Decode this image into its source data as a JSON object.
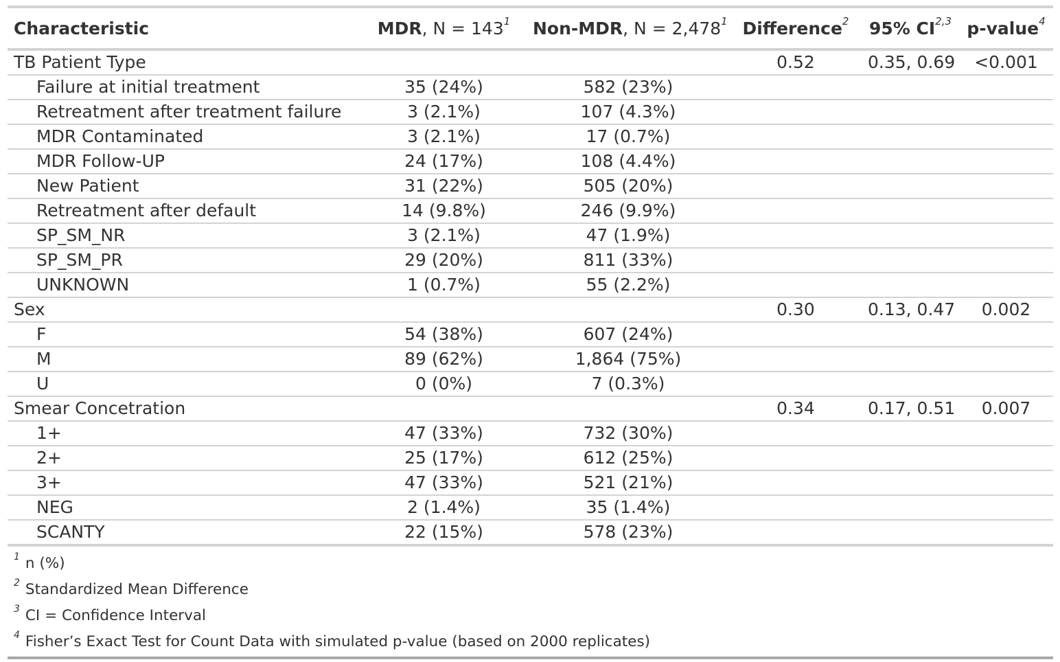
{
  "headers": {
    "characteristic": "Characteristic",
    "mdr_bold": "MDR",
    "mdr_rest": ", N = 143",
    "mdr_sup": "1",
    "nonmdr_bold": "Non-MDR",
    "nonmdr_rest": ", N = 2,478",
    "nonmdr_sup": "1",
    "difference": "Difference",
    "difference_sup": "2",
    "ci": "95% CI",
    "ci_sup": "2,3",
    "pvalue": "p-value",
    "pvalue_sup": "4"
  },
  "rows": [
    {
      "label": "TB Patient Type",
      "mdr": "",
      "nonmdr": "",
      "diff": "0.52",
      "ci": "0.35, 0.69",
      "p": "<0.001"
    },
    {
      "label": "Failure at initial treatment",
      "mdr": "35 (24%)",
      "nonmdr": "582 (23%)",
      "diff": "",
      "ci": "",
      "p": ""
    },
    {
      "label": "Retreatment after treatment failure",
      "mdr": "3 (2.1%)",
      "nonmdr": "107 (4.3%)",
      "diff": "",
      "ci": "",
      "p": ""
    },
    {
      "label": "MDR Contaminated",
      "mdr": "3 (2.1%)",
      "nonmdr": "17 (0.7%)",
      "diff": "",
      "ci": "",
      "p": ""
    },
    {
      "label": "MDR Follow-UP",
      "mdr": "24 (17%)",
      "nonmdr": "108 (4.4%)",
      "diff": "",
      "ci": "",
      "p": ""
    },
    {
      "label": "New Patient",
      "mdr": "31 (22%)",
      "nonmdr": "505 (20%)",
      "diff": "",
      "ci": "",
      "p": ""
    },
    {
      "label": "Retreatment after default",
      "mdr": "14 (9.8%)",
      "nonmdr": "246 (9.9%)",
      "diff": "",
      "ci": "",
      "p": ""
    },
    {
      "label": "SP_SM_NR",
      "mdr": "3 (2.1%)",
      "nonmdr": "47 (1.9%)",
      "diff": "",
      "ci": "",
      "p": ""
    },
    {
      "label": "SP_SM_PR",
      "mdr": "29 (20%)",
      "nonmdr": "811 (33%)",
      "diff": "",
      "ci": "",
      "p": ""
    },
    {
      "label": "UNKNOWN",
      "mdr": "1 (0.7%)",
      "nonmdr": "55 (2.2%)",
      "diff": "",
      "ci": "",
      "p": ""
    },
    {
      "label": "Sex",
      "mdr": "",
      "nonmdr": "",
      "diff": "0.30",
      "ci": "0.13, 0.47",
      "p": "0.002"
    },
    {
      "label": "F",
      "mdr": "54 (38%)",
      "nonmdr": "607 (24%)",
      "diff": "",
      "ci": "",
      "p": ""
    },
    {
      "label": "M",
      "mdr": "89 (62%)",
      "nonmdr": "1,864 (75%)",
      "diff": "",
      "ci": "",
      "p": ""
    },
    {
      "label": "U",
      "mdr": "0 (0%)",
      "nonmdr": "7 (0.3%)",
      "diff": "",
      "ci": "",
      "p": ""
    },
    {
      "label": "Smear Concetration",
      "mdr": "",
      "nonmdr": "",
      "diff": "0.34",
      "ci": "0.17, 0.51",
      "p": "0.007"
    },
    {
      "label": "1+",
      "mdr": "47 (33%)",
      "nonmdr": "732 (30%)",
      "diff": "",
      "ci": "",
      "p": ""
    },
    {
      "label": "2+",
      "mdr": "25 (17%)",
      "nonmdr": "612 (25%)",
      "diff": "",
      "ci": "",
      "p": ""
    },
    {
      "label": "3+",
      "mdr": "47 (33%)",
      "nonmdr": "521 (21%)",
      "diff": "",
      "ci": "",
      "p": ""
    },
    {
      "label": "NEG",
      "mdr": "2 (1.4%)",
      "nonmdr": "35 (1.4%)",
      "diff": "",
      "ci": "",
      "p": ""
    },
    {
      "label": "SCANTY",
      "mdr": "22 (15%)",
      "nonmdr": "578 (23%)",
      "diff": "",
      "ci": "",
      "p": ""
    }
  ],
  "footnotes": [
    {
      "mark": "1",
      "text": "n (%)"
    },
    {
      "mark": "2",
      "text": "Standardized Mean Difference"
    },
    {
      "mark": "3",
      "text": "CI = Confidence Interval"
    },
    {
      "mark": "4",
      "text": "Fisher’s Exact Test for Count Data with simulated p-value (based on 2000 replicates)"
    }
  ]
}
